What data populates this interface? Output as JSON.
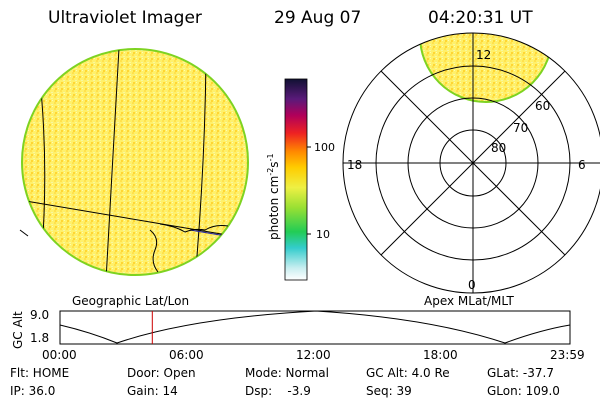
{
  "header": {
    "title": "Ultraviolet Imager",
    "date": "29 Aug 07",
    "time": "04:20:31 UT"
  },
  "colorbar": {
    "label": "photon cm",
    "label_sup1": "-2",
    "label_s": "s",
    "label_sup2": "-1",
    "ticks": [
      "100",
      "10"
    ]
  },
  "polar_plot": {
    "mlt_labels": [
      "12",
      "18",
      "6",
      "0"
    ],
    "mlat_labels": [
      "60",
      "70",
      "80"
    ]
  },
  "map_labels": {
    "left": "Geographic Lat/Lon",
    "right": "Apex MLat/MLT"
  },
  "altitude_plot": {
    "ylabel": "GC Alt",
    "yticks": [
      "9.0",
      "1.8"
    ],
    "xticks": [
      "00:00",
      "06:00",
      "12:00",
      "18:00",
      "23:59"
    ],
    "marker_time_hours": 4.342
  },
  "footer": {
    "row1": [
      "Flt: HOME",
      "Door: Open",
      "Mode: Normal",
      "GC Alt: 4.0 Re",
      "GLat: -37.7"
    ],
    "row2": [
      "IP: 36.0",
      "Gain: 14",
      "Dsp:    -3.9",
      "Seq: 39",
      "GLon: 109.0"
    ]
  },
  "colors": {
    "disk_fill": "#ffeb3b",
    "disk_edge": "#7ed321",
    "marker": "#cc0000"
  }
}
